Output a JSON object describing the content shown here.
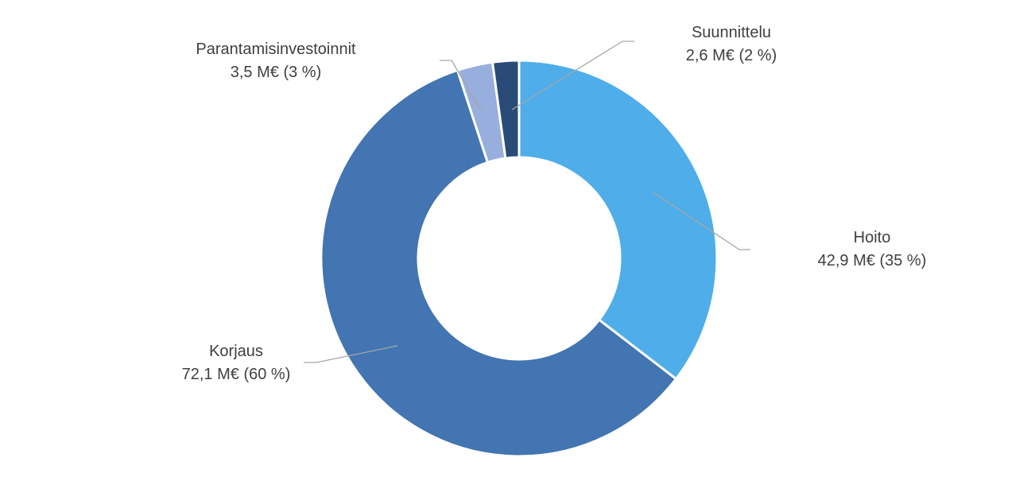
{
  "chart_data": {
    "type": "pie",
    "variant": "donut",
    "title": "",
    "unit": "M€",
    "start_angle_deg": 0,
    "direction": "clockwise",
    "legend": "none",
    "slices": [
      {
        "category": "Hoito",
        "value": 42.9,
        "percent": 35,
        "value_label": "42,9 M€ (35 %)",
        "color": "#4FADEA"
      },
      {
        "category": "Korjaus",
        "value": 72.1,
        "percent": 60,
        "value_label": "72,1 M€ (60 %)",
        "color": "#4275B1"
      },
      {
        "category": "Parantamisinvestoinnit",
        "value": 3.5,
        "percent": 3,
        "value_label": "3,5 M€ (3 %)",
        "color": "#98AEDD"
      },
      {
        "category": "Suunnittelu",
        "value": 2.6,
        "percent": 2,
        "value_label": "2,6 M€ (2 %)",
        "color": "#2A4B78"
      }
    ]
  }
}
